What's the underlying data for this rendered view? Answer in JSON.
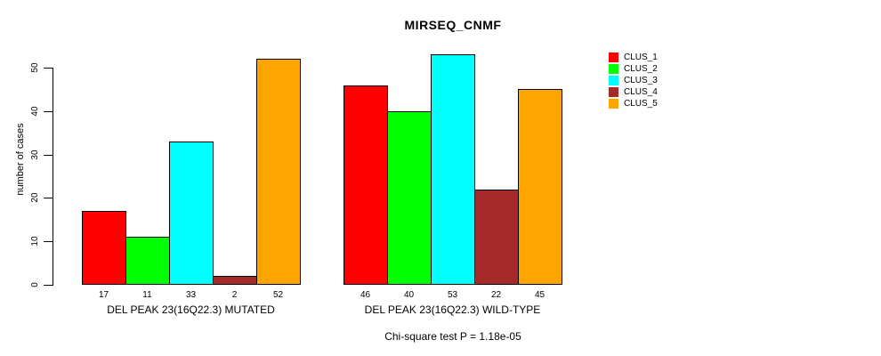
{
  "chart_data": {
    "type": "bar",
    "title": "MIRSEQ_CNMF",
    "ylabel": "number of cases",
    "xlabel": "",
    "yticks": [
      0,
      10,
      20,
      30,
      40,
      50
    ],
    "ylim": [
      0,
      53
    ],
    "grid": false,
    "legend_position": "top-right",
    "categories": [
      "DEL PEAK 23(16Q22.3) MUTATED",
      "DEL PEAK 23(16Q22.3) WILD-TYPE"
    ],
    "series": [
      {
        "name": "CLUS_1",
        "color": "#FF0000",
        "values": [
          17,
          46
        ]
      },
      {
        "name": "CLUS_2",
        "color": "#00FF00",
        "values": [
          11,
          40
        ]
      },
      {
        "name": "CLUS_3",
        "color": "#00FFFF",
        "values": [
          33,
          53
        ]
      },
      {
        "name": "CLUS_4",
        "color": "#A52A2A",
        "values": [
          2,
          22
        ]
      },
      {
        "name": "CLUS_5",
        "color": "#FFA500",
        "values": [
          52,
          45
        ]
      }
    ],
    "bar_value_labels": true,
    "annotation": "Chi-square test P = 1.18e-05",
    "axis_color": "#000000",
    "background_color": "#FFFFFF"
  }
}
